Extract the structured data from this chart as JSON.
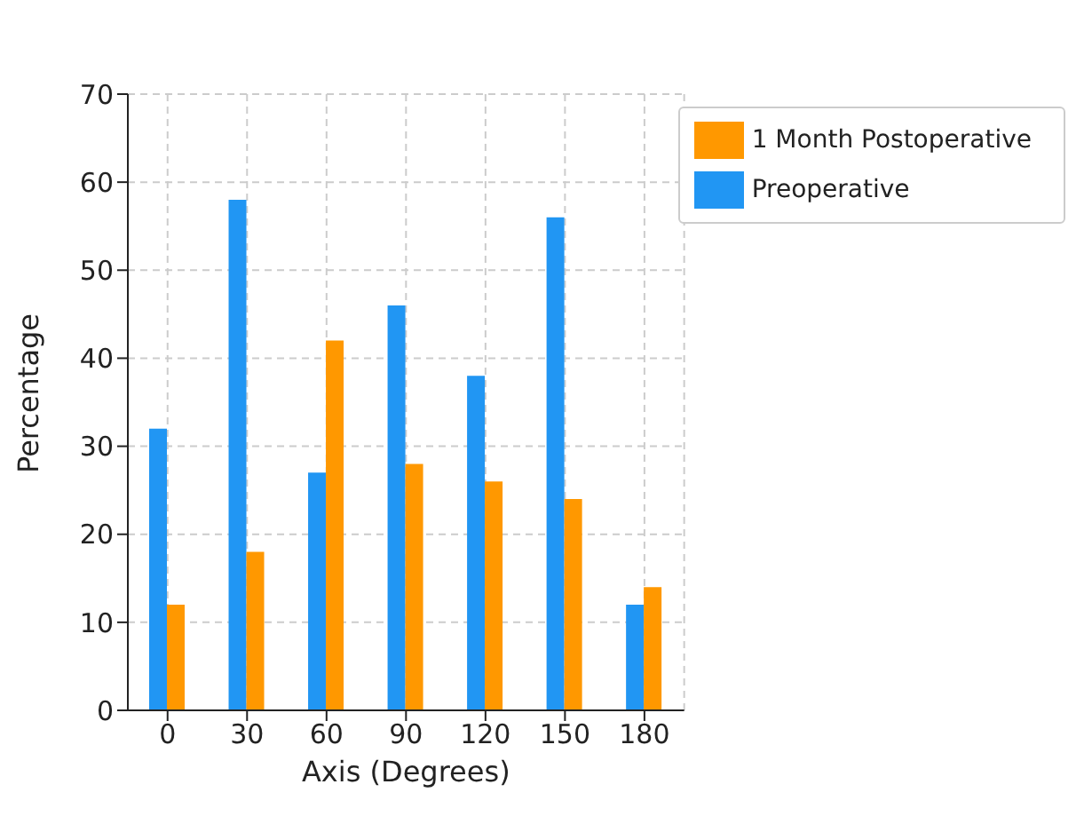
{
  "chart_data": {
    "type": "bar",
    "xlabel": "Axis (Degrees)",
    "ylabel": "Percentage",
    "categories": [
      "0",
      "30",
      "60",
      "90",
      "120",
      "150",
      "180"
    ],
    "series": [
      {
        "name": "Preoperative",
        "color": "#2196f3",
        "values": [
          32,
          58,
          27,
          46,
          38,
          56,
          12
        ]
      },
      {
        "name": "1 Month Postoperative",
        "color": "#ff9800",
        "values": [
          12,
          18,
          42,
          28,
          26,
          24,
          14
        ]
      }
    ],
    "ylim": [
      0,
      70
    ],
    "yticks": [
      0,
      10,
      20,
      30,
      40,
      50,
      60,
      70
    ],
    "grid": true,
    "legend": "top right"
  }
}
